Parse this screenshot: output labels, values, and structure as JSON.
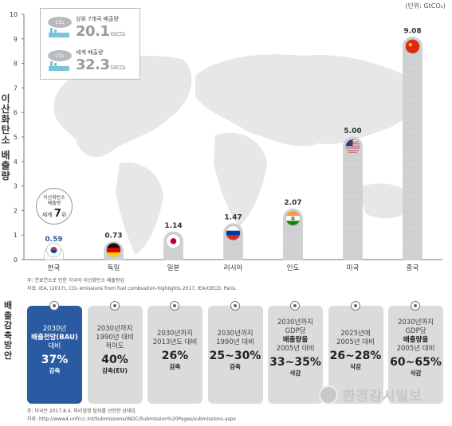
{
  "header": {
    "unit": "(단위: GtCO₂)"
  },
  "y_axis_label": [
    "이",
    "산",
    "화",
    "탄",
    "소",
    " ",
    "배",
    "출",
    "량"
  ],
  "infobox": {
    "rows": [
      {
        "gas": "CO₂",
        "label": "상위 7개국 배출량",
        "value": "20.1",
        "unit": "GtCO₂"
      },
      {
        "gas": "CO₂",
        "label": "세계 배출량",
        "value": "32.3",
        "unit": "GtCO₂"
      }
    ]
  },
  "rank_badge": {
    "line1": "이산화탄소",
    "line2": "배출량",
    "prefix": "세계",
    "rank": "7",
    "suffix": "위"
  },
  "notes": {
    "top_line1": "주: 연료연소로 인한 각국의 이산화탄소 배출량임",
    "top_line2": "자료: IEA, (2017), CO₂ emissions from fuel combustion-highlights 2017, IEA/OECD, Paris.",
    "bottom_line1": "주: 미국은 2017.8.4. 파리협정 탈퇴를 선언한 상태임",
    "bottom_line2": "자료: http://www4.unfccc.int/Submissions/INDC/Submission%20Pages/submissions.aspx"
  },
  "section2_label": [
    "배",
    "출",
    "감",
    "축",
    "방",
    "안"
  ],
  "chart_data": {
    "type": "bar",
    "categories": [
      "한국",
      "독일",
      "일본",
      "러시아",
      "인도",
      "미국",
      "중국"
    ],
    "values": [
      0.59,
      0.73,
      1.14,
      1.47,
      2.07,
      5.0,
      9.08
    ],
    "value_labels": [
      "0.59",
      "0.73",
      "1.14",
      "1.47",
      "2.07",
      "5.00",
      "9.08"
    ],
    "flags": [
      "korea-flag",
      "germany-flag",
      "japan-flag",
      "russia-flag",
      "india-flag",
      "usa-flag",
      "china-flag"
    ],
    "highlight_index": 0,
    "ylim": [
      0,
      10
    ],
    "yticks": [
      0,
      1,
      2,
      3,
      4,
      5,
      6,
      7,
      8,
      9,
      10
    ],
    "colors": {
      "bar": "#cfd1d3",
      "bar_highlight": "#ffffff",
      "value_text": "#333333",
      "value_highlight": "#2a5aa2",
      "map": "#e7e7e7",
      "axis": "#777777"
    }
  },
  "plans": [
    {
      "lines": [
        "2030년",
        "배출전망(BAU)",
        "대비"
      ],
      "bold_index": 1,
      "big": "37%",
      "after": "감축",
      "highlight": true
    },
    {
      "lines": [
        "2030년까지",
        "1990년 대비",
        "적어도"
      ],
      "bold_index": -1,
      "big": "40%",
      "after": "감축(EU)",
      "highlight": false
    },
    {
      "lines": [
        "2030년까지",
        "2013년도 대비"
      ],
      "bold_index": -1,
      "big": "26%",
      "after": "감축",
      "highlight": false
    },
    {
      "lines": [
        "2030년까지",
        "1990년 대비"
      ],
      "bold_index": -1,
      "big": "25~30%",
      "after": "감축",
      "highlight": false
    },
    {
      "lines": [
        "2030년까지",
        "GDP당",
        "배출량을",
        "2005년 대비"
      ],
      "bold_index": -2,
      "big": "33~35%",
      "after": "삭감",
      "highlight": false
    },
    {
      "lines": [
        "2025년에",
        "2005년 대비"
      ],
      "bold_index": -1,
      "big": "26~28%",
      "after": "삭감",
      "highlight": false
    },
    {
      "lines": [
        "2030년까지",
        "GDP당",
        "배출량을",
        "2005년 대비"
      ],
      "bold_index": -2,
      "big": "60~65%",
      "after": "삭감",
      "highlight": false
    }
  ],
  "watermark": {
    "text": "환경감시일보"
  }
}
